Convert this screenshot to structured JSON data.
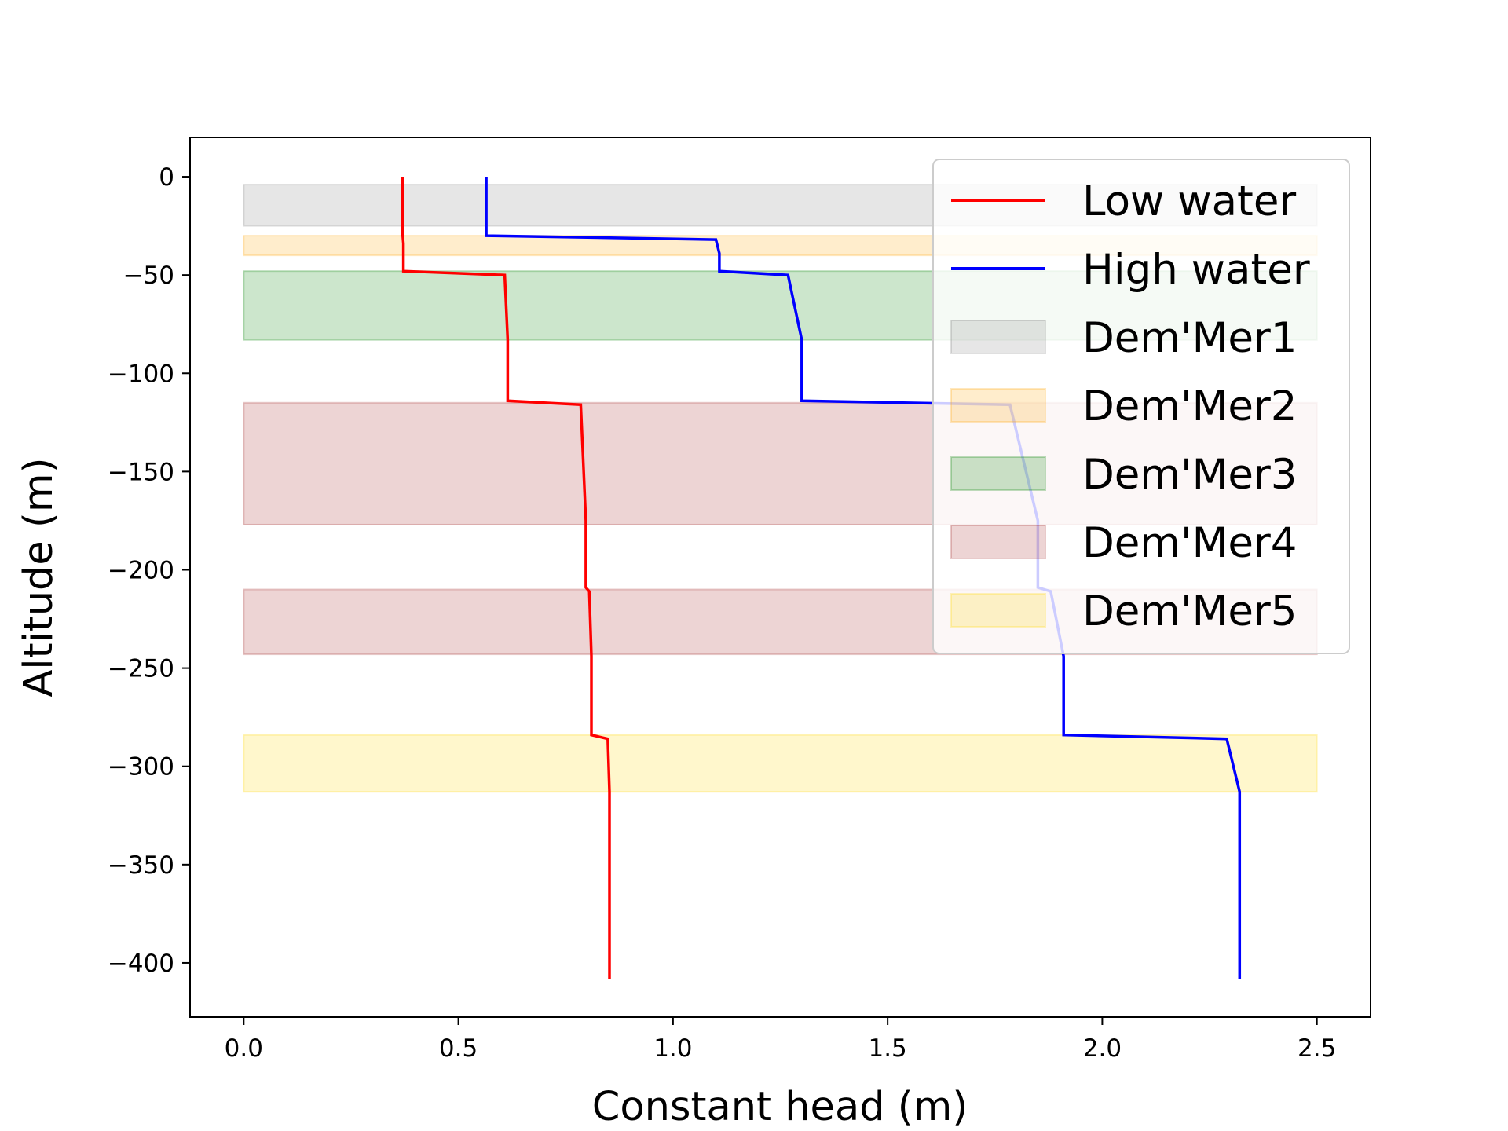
{
  "chart_data": {
    "type": "line",
    "title": "",
    "xlabel": "Constant head (m)",
    "ylabel": "Altitude (m)",
    "xlim": [
      -0.125,
      2.625
    ],
    "ylim": [
      -427.6,
      20
    ],
    "xticks": [
      0.0,
      0.5,
      1.0,
      1.5,
      2.0,
      2.5
    ],
    "xtick_labels": [
      "0.0",
      "0.5",
      "1.0",
      "1.5",
      "2.0",
      "2.5"
    ],
    "yticks": [
      0,
      -50,
      -100,
      -150,
      -200,
      -250,
      -300,
      -350,
      -400
    ],
    "ytick_labels": [
      "0",
      "−50",
      "−100",
      "−150",
      "−200",
      "−250",
      "−300",
      "−350",
      "−400"
    ],
    "grid": false,
    "legend_position": "top-right",
    "series": [
      {
        "name": "Low water",
        "color": "#ff0000",
        "points": [
          [
            0.37,
            0
          ],
          [
            0.37,
            -29
          ],
          [
            0.372,
            -34
          ],
          [
            0.372,
            -48
          ],
          [
            0.608,
            -50
          ],
          [
            0.615,
            -83
          ],
          [
            0.615,
            -114
          ],
          [
            0.785,
            -116
          ],
          [
            0.797,
            -175
          ],
          [
            0.797,
            -209
          ],
          [
            0.805,
            -211
          ],
          [
            0.81,
            -244
          ],
          [
            0.81,
            -284
          ],
          [
            0.848,
            -286
          ],
          [
            0.852,
            -313
          ],
          [
            0.852,
            -408
          ]
        ]
      },
      {
        "name": "High water",
        "color": "#0000ff",
        "points": [
          [
            0.565,
            0
          ],
          [
            0.565,
            -30
          ],
          [
            1.1,
            -32
          ],
          [
            1.108,
            -39
          ],
          [
            1.108,
            -48
          ],
          [
            1.268,
            -50
          ],
          [
            1.3,
            -83
          ],
          [
            1.3,
            -114
          ],
          [
            1.785,
            -116
          ],
          [
            1.85,
            -175
          ],
          [
            1.85,
            -209
          ],
          [
            1.88,
            -211
          ],
          [
            1.91,
            -244
          ],
          [
            1.91,
            -284
          ],
          [
            2.29,
            -286
          ],
          [
            2.32,
            -313
          ],
          [
            2.32,
            -408
          ]
        ]
      }
    ],
    "bands": [
      {
        "name": "Dem'Mer1",
        "color": "#808080",
        "x": [
          0,
          2.5
        ],
        "y": [
          -4,
          -25
        ]
      },
      {
        "name": "Dem'Mer2",
        "color": "#ffa500",
        "x": [
          0,
          2.5
        ],
        "y": [
          -30,
          -40
        ]
      },
      {
        "name": "Dem'Mer3",
        "color": "#008000",
        "x": [
          0,
          2.5
        ],
        "y": [
          -48,
          -83
        ]
      },
      {
        "name": "Dem'Mer4",
        "color": "#a52a2a",
        "x": [
          0,
          2.5
        ],
        "y": [
          -115,
          -177
        ]
      },
      {
        "name": "Dem'Mer4",
        "color": "#a52a2a",
        "x": [
          0,
          2.5
        ],
        "y": [
          -210,
          -243
        ],
        "in_legend": false
      },
      {
        "name": "Dem'Mer5",
        "color": "#ffd700",
        "x": [
          0,
          2.5
        ],
        "y": [
          -284,
          -313
        ]
      }
    ]
  }
}
